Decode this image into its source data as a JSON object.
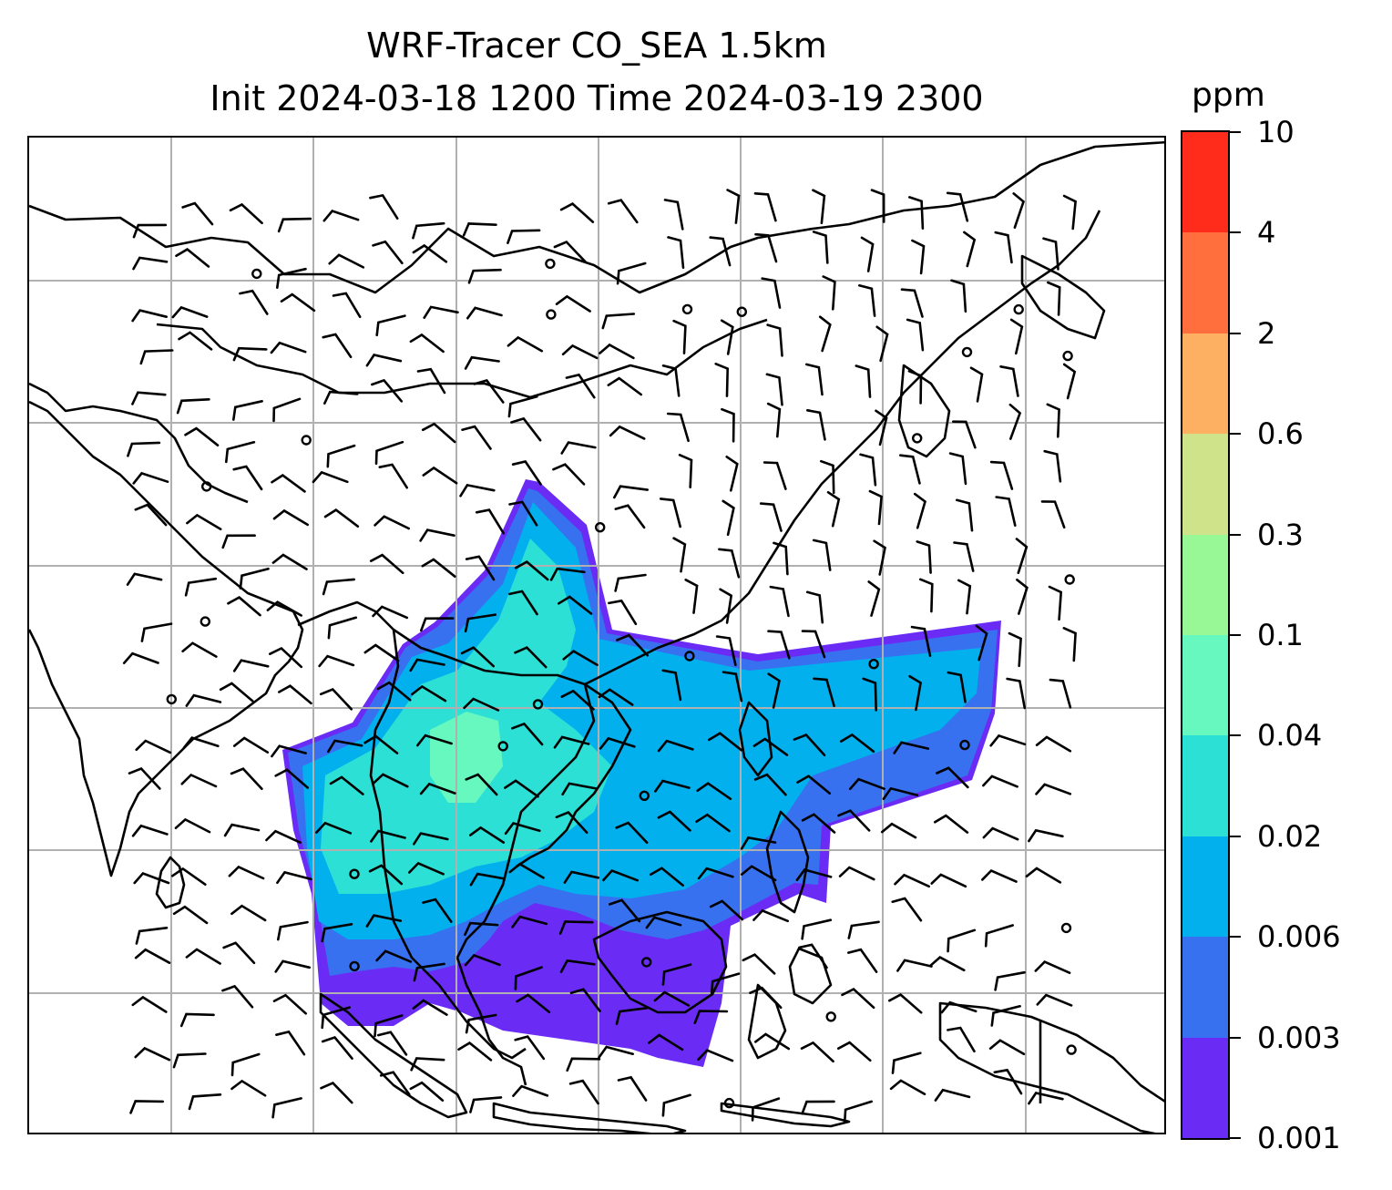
{
  "title": {
    "line1": "WRF-Tracer CO_SEA 1.5km",
    "line2": "Init 2024-03-18 1200 Time 2024-03-19 2300"
  },
  "colorbar": {
    "unit": "ppm",
    "levels": [
      "0.001",
      "0.003",
      "0.006",
      "0.02",
      "0.04",
      "0.1",
      "0.3",
      "0.6",
      "2",
      "4",
      "10"
    ],
    "colors": [
      "#6a2cf5",
      "#3871f0",
      "#02b0ee",
      "#2de0d5",
      "#67f8c0",
      "#98f896",
      "#cfe38a",
      "#fdb062",
      "#ff6e3d",
      "#ff2c1b"
    ]
  },
  "map": {
    "gridlines": "on",
    "field_colors": {
      "outer": "#6a2cf5",
      "band": "#3871f0",
      "core": "#02b0ee",
      "inner": "#2de0d5",
      "peak": "#67f8c0"
    },
    "coastline_color": "#000000",
    "wind_barb_color": "#000000"
  }
}
